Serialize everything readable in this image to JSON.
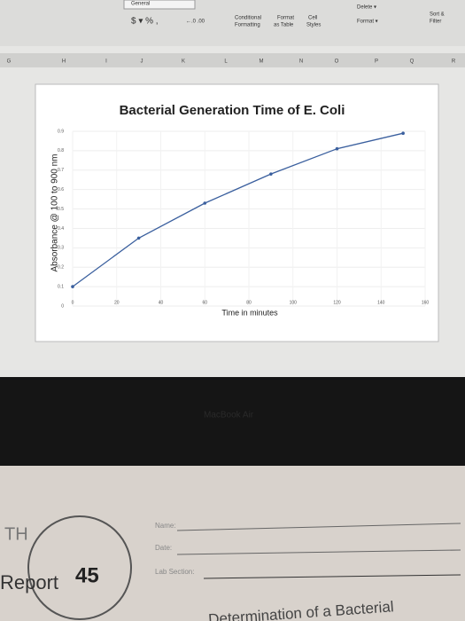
{
  "ribbon": {
    "number_format": "General",
    "number_buttons": "$ ▾ % ,",
    "decimals": "←.0 .00",
    "conditional": [
      "Conditional",
      "Formatting"
    ],
    "format_table": [
      "Format",
      "as Table"
    ],
    "cell_styles": [
      "Cell",
      "Styles"
    ],
    "delete": "Delete ▾",
    "format": "Format ▾",
    "sort": [
      "Sort &",
      "Filter"
    ]
  },
  "columns": [
    "G",
    "H",
    "I",
    "J",
    "K",
    "L",
    "M",
    "N",
    "O",
    "P",
    "Q",
    "R"
  ],
  "chart_data": {
    "type": "line",
    "title": "Bacterial Generation Time of E. Coli",
    "x_label": "Time in minutes",
    "y_label": "Absorbance @ 100 to 900 nm",
    "x": [
      0,
      30,
      60,
      90,
      120,
      150
    ],
    "values": [
      0.1,
      0.35,
      0.53,
      0.68,
      0.81,
      0.89
    ],
    "color": "#3a5f9e",
    "xlim": [
      0,
      160
    ],
    "ylim": [
      0,
      0.9
    ],
    "xticks": [
      0,
      20,
      40,
      60,
      80,
      100,
      120,
      140,
      160
    ],
    "yticks": [
      0,
      0.1,
      0.2,
      0.3,
      0.4,
      0.5,
      0.6,
      0.7,
      0.8,
      0.9
    ],
    "grid": true
  },
  "bezel": "MacBook Air",
  "paper": {
    "initials": "TH",
    "report": "Report",
    "number": "45",
    "name": "Name:",
    "date": "Date:",
    "section": "Lab Section:",
    "heading": "Determination of a Bacterial"
  }
}
